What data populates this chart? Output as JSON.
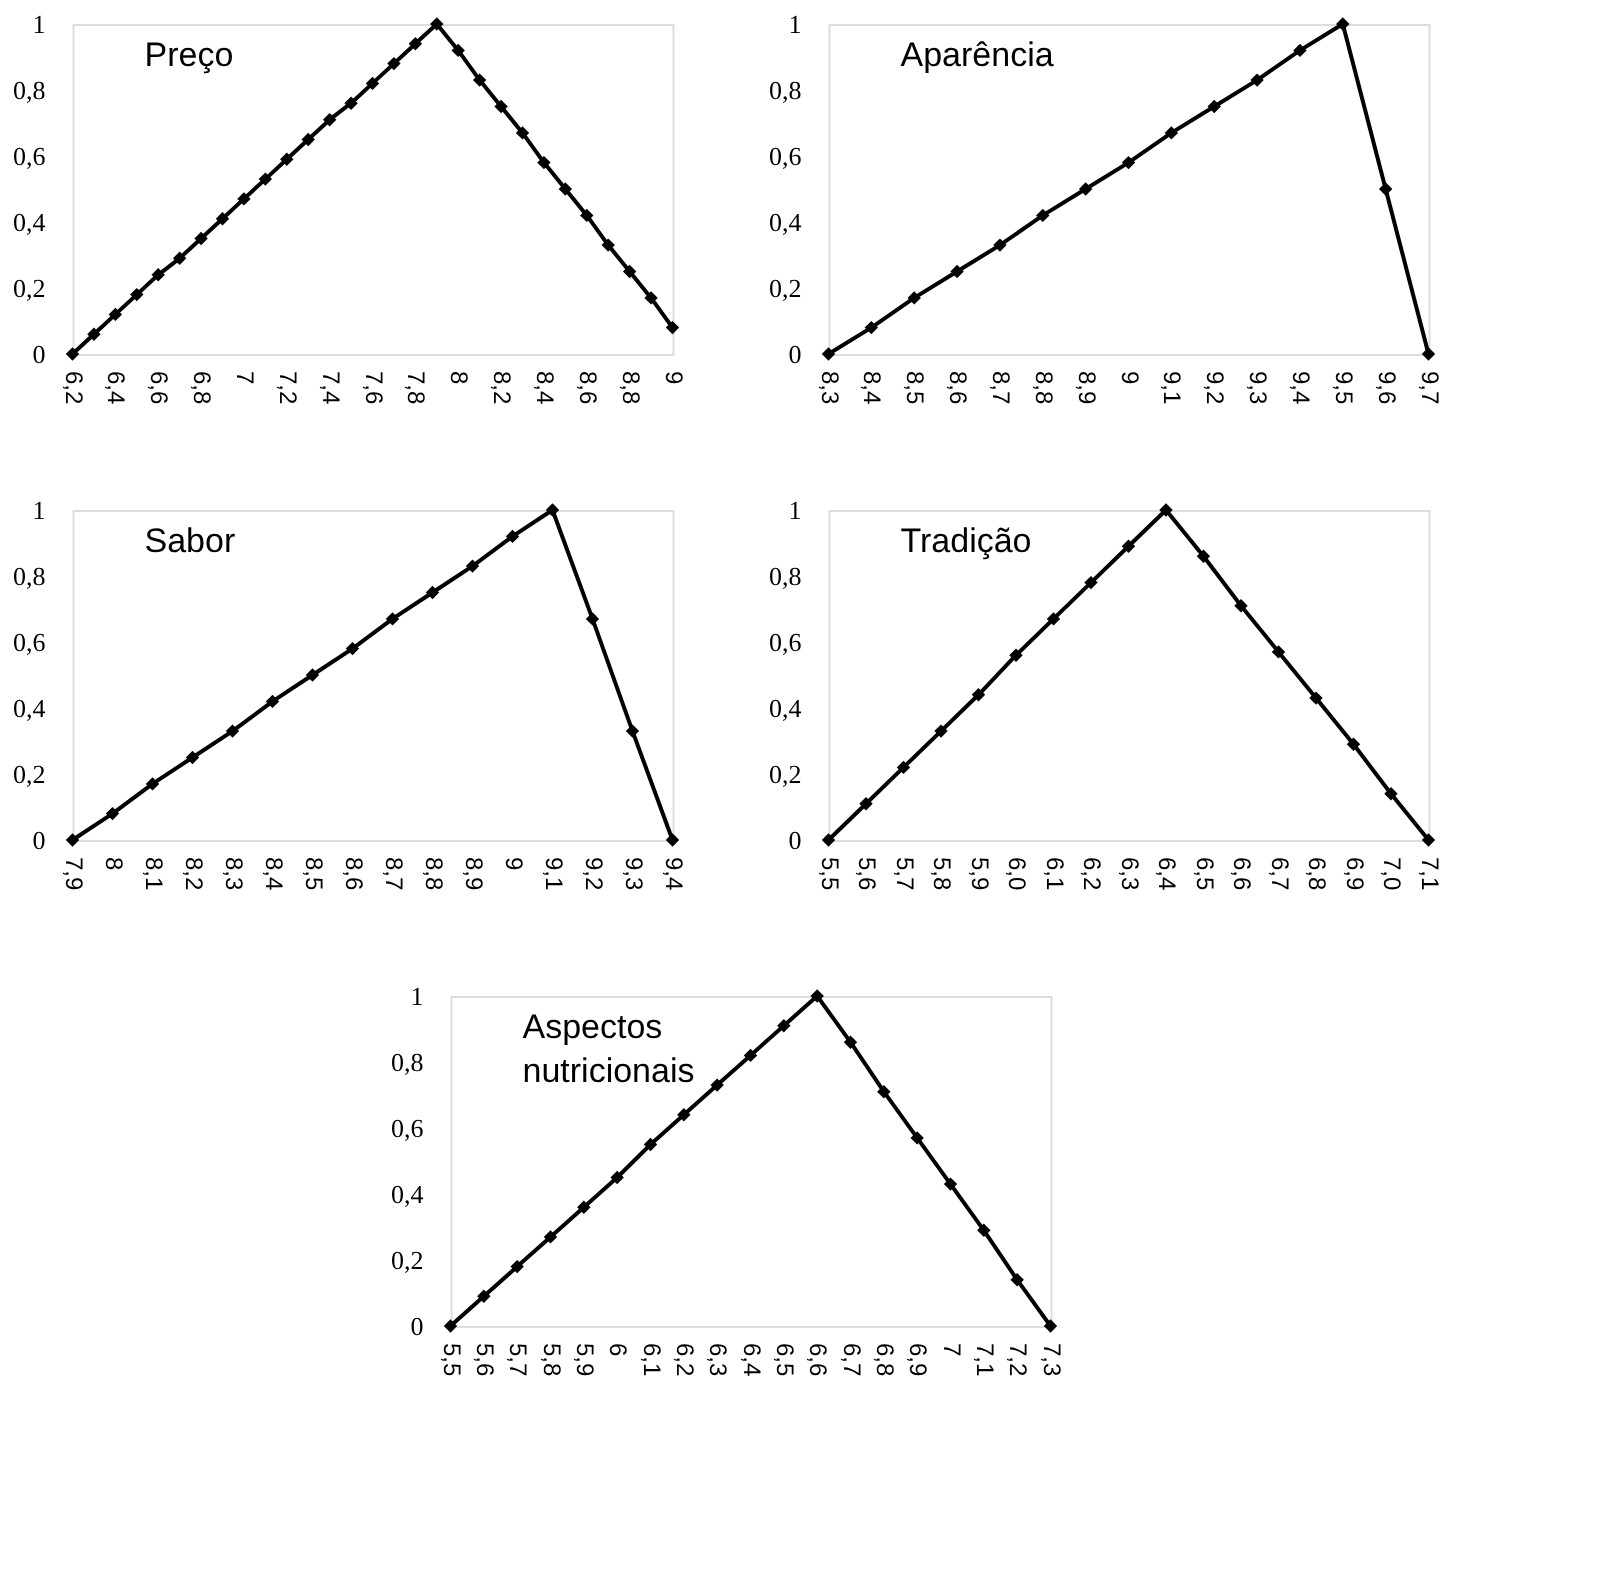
{
  "chart_data": [
    {
      "type": "line",
      "title": "Preço",
      "marker": "diamond",
      "line_style": "solid",
      "grid": false,
      "x": [
        6.2,
        6.3,
        6.4,
        6.5,
        6.6,
        6.7,
        6.8,
        6.9,
        7.0,
        7.1,
        7.2,
        7.3,
        7.4,
        7.5,
        7.6,
        7.7,
        7.8,
        7.9,
        8.0,
        8.1,
        8.2,
        8.3,
        8.4,
        8.5,
        8.6,
        8.7,
        8.8,
        8.9,
        9.0
      ],
      "series": [
        {
          "color": "#000000",
          "values": [
            0,
            0.06,
            0.12,
            0.18,
            0.24,
            0.29,
            0.35,
            0.41,
            0.47,
            0.53,
            0.59,
            0.65,
            0.71,
            0.76,
            0.82,
            0.88,
            0.94,
            1,
            0.92,
            0.83,
            0.75,
            0.67,
            0.58,
            0.5,
            0.42,
            0.33,
            0.25,
            0.17,
            0.08
          ]
        }
      ],
      "xlim": [
        6.2,
        9.0
      ],
      "xticks": [
        {
          "value": 6.2,
          "label": "6,2"
        },
        {
          "value": 6.4,
          "label": "6,4"
        },
        {
          "value": 6.6,
          "label": "6,6"
        },
        {
          "value": 6.8,
          "label": "6,8"
        },
        7,
        {
          "value": 7.2,
          "label": "7,2"
        },
        {
          "value": 7.4,
          "label": "7,4"
        },
        {
          "value": 7.6,
          "label": "7,6"
        },
        {
          "value": 7.8,
          "label": "7,8"
        },
        8,
        {
          "value": 8.2,
          "label": "8,2"
        },
        {
          "value": 8.4,
          "label": "8,4"
        },
        {
          "value": 8.6,
          "label": "8,6"
        },
        {
          "value": 8.8,
          "label": "8,8"
        },
        9
      ],
      "ylim": [
        0,
        1
      ],
      "yticks": [
        0,
        {
          "value": 0.2,
          "label": "0,2"
        },
        {
          "value": 0.4,
          "label": "0,4"
        },
        {
          "value": 0.6,
          "label": "0,6"
        },
        {
          "value": 0.8,
          "label": "0,8"
        },
        1
      ]
    },
    {
      "type": "line",
      "title": "Aparência",
      "marker": "diamond",
      "line_style": "solid",
      "grid": false,
      "x": [
        8.3,
        8.4,
        8.5,
        8.6,
        8.7,
        8.8,
        8.9,
        9.0,
        9.1,
        9.2,
        9.3,
        9.4,
        9.5,
        9.6,
        9.7
      ],
      "series": [
        {
          "color": "#000000",
          "values": [
            0,
            0.08,
            0.17,
            0.25,
            0.33,
            0.42,
            0.5,
            0.58,
            0.67,
            0.75,
            0.83,
            0.92,
            1,
            0.5,
            0
          ]
        }
      ],
      "xlim": [
        8.3,
        9.7
      ],
      "xticks": [
        {
          "value": 8.3,
          "label": "8,3"
        },
        {
          "value": 8.4,
          "label": "8,4"
        },
        {
          "value": 8.5,
          "label": "8,5"
        },
        {
          "value": 8.6,
          "label": "8,6"
        },
        {
          "value": 8.7,
          "label": "8,7"
        },
        {
          "value": 8.8,
          "label": "8,8"
        },
        {
          "value": 8.9,
          "label": "8,9"
        },
        9,
        {
          "value": 9.1,
          "label": "9,1"
        },
        {
          "value": 9.2,
          "label": "9,2"
        },
        {
          "value": 9.3,
          "label": "9,3"
        },
        {
          "value": 9.4,
          "label": "9,4"
        },
        {
          "value": 9.5,
          "label": "9,5"
        },
        {
          "value": 9.6,
          "label": "9,6"
        },
        {
          "value": 9.7,
          "label": "9,7"
        }
      ],
      "ylim": [
        0,
        1
      ],
      "yticks": [
        0,
        {
          "value": 0.2,
          "label": "0,2"
        },
        {
          "value": 0.4,
          "label": "0,4"
        },
        {
          "value": 0.6,
          "label": "0,6"
        },
        {
          "value": 0.8,
          "label": "0,8"
        },
        1
      ]
    },
    {
      "type": "line",
      "title": "Sabor",
      "marker": "diamond",
      "line_style": "solid",
      "grid": false,
      "x": [
        7.9,
        8.0,
        8.1,
        8.2,
        8.3,
        8.4,
        8.5,
        8.6,
        8.7,
        8.8,
        8.9,
        9.0,
        9.1,
        9.2,
        9.3,
        9.4
      ],
      "series": [
        {
          "color": "#000000",
          "values": [
            0,
            0.08,
            0.17,
            0.25,
            0.33,
            0.42,
            0.5,
            0.58,
            0.67,
            0.75,
            0.83,
            0.92,
            1,
            0.67,
            0.33,
            0
          ]
        }
      ],
      "xlim": [
        7.9,
        9.4
      ],
      "xticks": [
        {
          "value": 7.9,
          "label": "7,9"
        },
        8,
        {
          "value": 8.1,
          "label": "8,1"
        },
        {
          "value": 8.2,
          "label": "8,2"
        },
        {
          "value": 8.3,
          "label": "8,3"
        },
        {
          "value": 8.4,
          "label": "8,4"
        },
        {
          "value": 8.5,
          "label": "8,5"
        },
        {
          "value": 8.6,
          "label": "8,6"
        },
        {
          "value": 8.7,
          "label": "8,7"
        },
        {
          "value": 8.8,
          "label": "8,8"
        },
        {
          "value": 8.9,
          "label": "8,9"
        },
        9,
        {
          "value": 9.1,
          "label": "9,1"
        },
        {
          "value": 9.2,
          "label": "9,2"
        },
        {
          "value": 9.3,
          "label": "9,3"
        },
        {
          "value": 9.4,
          "label": "9,4"
        }
      ],
      "ylim": [
        0,
        1
      ],
      "yticks": [
        0,
        {
          "value": 0.2,
          "label": "0,2"
        },
        {
          "value": 0.4,
          "label": "0,4"
        },
        {
          "value": 0.6,
          "label": "0,6"
        },
        {
          "value": 0.8,
          "label": "0,8"
        },
        1
      ]
    },
    {
      "type": "line",
      "title": "Tradição",
      "marker": "diamond",
      "line_style": "solid",
      "grid": false,
      "x": [
        5.5,
        5.6,
        5.7,
        5.8,
        5.9,
        6.0,
        6.1,
        6.2,
        6.3,
        6.4,
        6.5,
        6.6,
        6.7,
        6.8,
        6.9,
        7.0,
        7.1
      ],
      "series": [
        {
          "color": "#000000",
          "values": [
            0,
            0.11,
            0.22,
            0.33,
            0.44,
            0.56,
            0.67,
            0.78,
            0.89,
            1,
            0.86,
            0.71,
            0.57,
            0.43,
            0.29,
            0.14,
            0
          ]
        }
      ],
      "xlim": [
        5.5,
        7.1
      ],
      "xticks": [
        {
          "value": 5.5,
          "label": "5,5"
        },
        {
          "value": 5.6,
          "label": "5,6"
        },
        {
          "value": 5.7,
          "label": "5,7"
        },
        {
          "value": 5.8,
          "label": "5,8"
        },
        {
          "value": 5.9,
          "label": "5,9"
        },
        {
          "value": 6.0,
          "label": "6,0"
        },
        {
          "value": 6.1,
          "label": "6,1"
        },
        {
          "value": 6.2,
          "label": "6,2"
        },
        {
          "value": 6.3,
          "label": "6,3"
        },
        {
          "value": 6.4,
          "label": "6,4"
        },
        {
          "value": 6.5,
          "label": "6,5"
        },
        {
          "value": 6.6,
          "label": "6,6"
        },
        {
          "value": 6.7,
          "label": "6,7"
        },
        {
          "value": 6.8,
          "label": "6,8"
        },
        {
          "value": 6.9,
          "label": "6,9"
        },
        {
          "value": 7.0,
          "label": "7,0"
        },
        {
          "value": 7.1,
          "label": "7,1"
        }
      ],
      "ylim": [
        0,
        1
      ],
      "yticks": [
        0,
        {
          "value": 0.2,
          "label": "0,2"
        },
        {
          "value": 0.4,
          "label": "0,4"
        },
        {
          "value": 0.6,
          "label": "0,6"
        },
        {
          "value": 0.8,
          "label": "0,8"
        },
        1
      ]
    },
    {
      "type": "line",
      "title": "Aspectos nutricionais",
      "marker": "diamond",
      "line_style": "solid",
      "grid": false,
      "x": [
        5.5,
        5.6,
        5.7,
        5.8,
        5.9,
        6.0,
        6.1,
        6.2,
        6.3,
        6.4,
        6.5,
        6.6,
        6.7,
        6.8,
        6.9,
        7.0,
        7.1,
        7.2,
        7.3
      ],
      "series": [
        {
          "color": "#000000",
          "values": [
            0,
            0.09,
            0.18,
            0.27,
            0.36,
            0.45,
            0.55,
            0.64,
            0.73,
            0.82,
            0.91,
            1,
            0.86,
            0.71,
            0.57,
            0.43,
            0.29,
            0.14,
            0
          ]
        }
      ],
      "xlim": [
        5.5,
        7.3
      ],
      "xticks": [
        {
          "value": 5.5,
          "label": "5,5"
        },
        {
          "value": 5.6,
          "label": "5,6"
        },
        {
          "value": 5.7,
          "label": "5,7"
        },
        {
          "value": 5.8,
          "label": "5,8"
        },
        {
          "value": 5.9,
          "label": "5,9"
        },
        6,
        {
          "value": 6.1,
          "label": "6,1"
        },
        {
          "value": 6.2,
          "label": "6,2"
        },
        {
          "value": 6.3,
          "label": "6,3"
        },
        {
          "value": 6.4,
          "label": "6,4"
        },
        {
          "value": 6.5,
          "label": "6,5"
        },
        {
          "value": 6.6,
          "label": "6,6"
        },
        {
          "value": 6.7,
          "label": "6,7"
        },
        {
          "value": 6.8,
          "label": "6,8"
        },
        {
          "value": 6.9,
          "label": "6,9"
        },
        7,
        {
          "value": 7.1,
          "label": "7,1"
        },
        {
          "value": 7.2,
          "label": "7,2"
        },
        {
          "value": 7.3,
          "label": "7,3"
        }
      ],
      "ylim": [
        0,
        1
      ],
      "yticks": [
        0,
        {
          "value": 0.2,
          "label": "0,2"
        },
        {
          "value": 0.4,
          "label": "0,4"
        },
        {
          "value": 0.6,
          "label": "0,6"
        },
        {
          "value": 0.8,
          "label": "0,8"
        },
        1
      ]
    }
  ]
}
